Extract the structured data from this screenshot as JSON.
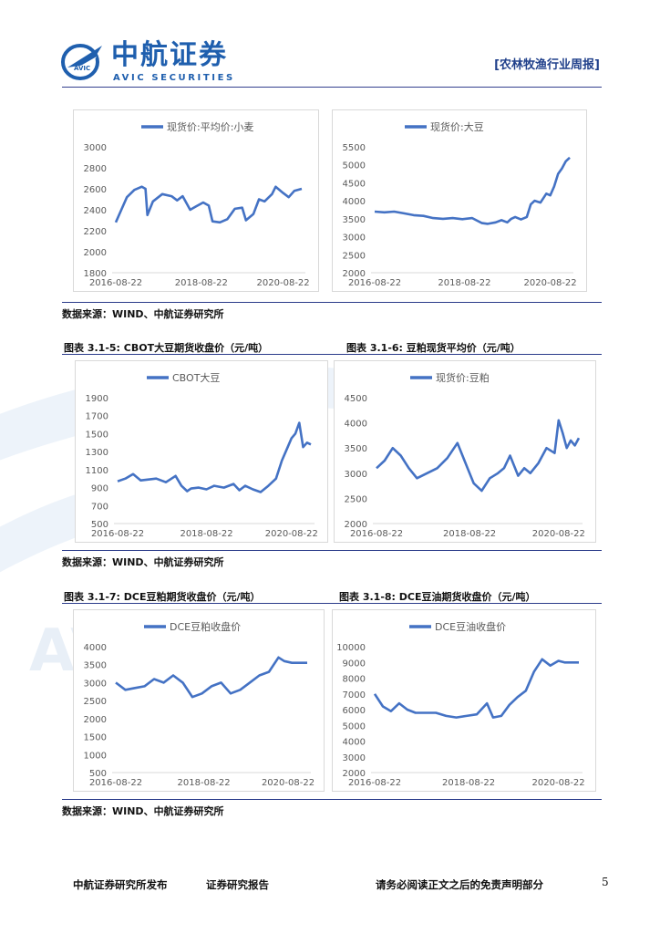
{
  "header": {
    "logo_cn": "中航证券",
    "logo_en": "AVIC SECURITIES",
    "report_tag": "[农林牧渔行业周报]"
  },
  "captions": {
    "c5": "图表 3.1-5:  CBOT大豆期货收盘价（元/吨）",
    "c6": "图表 3.1-6:  豆粕现货平均价（元/吨）",
    "c7": "图表 3.1-7:  DCE豆粕期货收盘价（元/吨）",
    "c8": "图表 3.1-8:  DCE豆油期货收盘价（元/吨）"
  },
  "sources": {
    "s1": "数据来源：WIND、中航证券研究所",
    "s2": "数据来源：WIND、中航证券研究所",
    "s3": "数据来源：WIND、中航证券研究所"
  },
  "footer": {
    "publisher": "中航证券研究所发布",
    "report_type": "证券研究报告",
    "disclaimer": "请务必阅读正文之后的免责声明部分",
    "page": "5"
  },
  "colors": {
    "line": "#4472c4",
    "brand": "#1f5fae",
    "rule": "#2a3b8a"
  },
  "chart_data": [
    {
      "type": "line",
      "legend": "现货价:平均价:小麦",
      "ylim": [
        1800,
        3000
      ],
      "yticks": [
        "3000",
        "2800",
        "2600",
        "2400",
        "2200",
        "2000",
        "1800"
      ],
      "xticks": [
        "2016-08-22",
        "2018-08-22",
        "2020-08-22"
      ],
      "x": [
        0,
        0.03,
        0.06,
        0.1,
        0.14,
        0.16,
        0.17,
        0.2,
        0.25,
        0.3,
        0.33,
        0.36,
        0.4,
        0.43,
        0.47,
        0.5,
        0.52,
        0.56,
        0.6,
        0.64,
        0.68,
        0.7,
        0.74,
        0.77,
        0.8,
        0.84,
        0.86,
        0.9,
        0.93,
        0.96,
        1
      ],
      "values": [
        2280,
        2400,
        2520,
        2590,
        2620,
        2600,
        2350,
        2480,
        2550,
        2530,
        2490,
        2530,
        2400,
        2430,
        2470,
        2440,
        2290,
        2280,
        2310,
        2410,
        2420,
        2300,
        2360,
        2500,
        2480,
        2550,
        2620,
        2560,
        2520,
        2580,
        2600
      ]
    },
    {
      "type": "line",
      "legend": "现货价:大豆",
      "ylim": [
        2000,
        5500
      ],
      "yticks": [
        "5500",
        "5000",
        "4500",
        "4000",
        "3500",
        "3000",
        "2500",
        "2000"
      ],
      "xticks": [
        "2016-08-22",
        "2018-08-22",
        "2020-08-22"
      ],
      "x": [
        0,
        0.05,
        0.1,
        0.15,
        0.2,
        0.25,
        0.3,
        0.35,
        0.4,
        0.45,
        0.5,
        0.55,
        0.58,
        0.62,
        0.65,
        0.68,
        0.7,
        0.72,
        0.75,
        0.78,
        0.8,
        0.82,
        0.85,
        0.88,
        0.9,
        0.92,
        0.94,
        0.96,
        0.98,
        1
      ],
      "values": [
        3700,
        3680,
        3700,
        3650,
        3600,
        3580,
        3520,
        3500,
        3520,
        3490,
        3520,
        3380,
        3360,
        3400,
        3460,
        3400,
        3500,
        3550,
        3480,
        3550,
        3900,
        4000,
        3950,
        4200,
        4150,
        4400,
        4750,
        4900,
        5100,
        5200
      ]
    },
    {
      "type": "line",
      "legend": "CBOT大豆",
      "ylim": [
        500,
        1900
      ],
      "yticks": [
        "1900",
        "1700",
        "1500",
        "1300",
        "1100",
        "900",
        "700",
        "500"
      ],
      "xticks": [
        "2016-08-22",
        "2018-08-22",
        "2020-08-22"
      ],
      "x": [
        0,
        0.04,
        0.08,
        0.12,
        0.16,
        0.2,
        0.25,
        0.3,
        0.33,
        0.36,
        0.38,
        0.42,
        0.46,
        0.5,
        0.55,
        0.6,
        0.63,
        0.66,
        0.7,
        0.74,
        0.78,
        0.82,
        0.85,
        0.88,
        0.9,
        0.92,
        0.94,
        0.96,
        0.98,
        1
      ],
      "values": [
        970,
        1000,
        1050,
        980,
        990,
        1000,
        960,
        1030,
        920,
        860,
        890,
        900,
        880,
        920,
        900,
        940,
        870,
        920,
        880,
        850,
        920,
        1000,
        1200,
        1350,
        1450,
        1500,
        1620,
        1350,
        1400,
        1380
      ]
    },
    {
      "type": "line",
      "legend": "现货价:豆粕",
      "ylim": [
        2000,
        4500
      ],
      "yticks": [
        "4500",
        "4000",
        "3500",
        "3000",
        "2500",
        "2000"
      ],
      "xticks": [
        "2016-08-22",
        "2018-08-22",
        "2020-08-22"
      ],
      "x": [
        0,
        0.04,
        0.08,
        0.12,
        0.16,
        0.2,
        0.25,
        0.3,
        0.35,
        0.4,
        0.45,
        0.48,
        0.52,
        0.56,
        0.6,
        0.63,
        0.66,
        0.7,
        0.73,
        0.76,
        0.8,
        0.84,
        0.88,
        0.9,
        0.92,
        0.94,
        0.96,
        0.98,
        1
      ],
      "values": [
        3100,
        3250,
        3500,
        3350,
        3100,
        2900,
        3000,
        3100,
        3300,
        3600,
        3100,
        2800,
        2650,
        2900,
        3000,
        3100,
        3350,
        2950,
        3100,
        3000,
        3200,
        3500,
        3400,
        4050,
        3800,
        3500,
        3650,
        3550,
        3700
      ]
    },
    {
      "type": "line",
      "legend": "DCE豆粕收盘价",
      "ylim": [
        500,
        4000
      ],
      "yticks": [
        "4000",
        "3500",
        "3000",
        "2500",
        "2000",
        "1500",
        "1000",
        "500"
      ],
      "xticks": [
        "2016-08-22",
        "2018-08-22",
        "2020-08-22"
      ],
      "x": [
        0,
        0.05,
        0.1,
        0.15,
        0.2,
        0.25,
        0.3,
        0.35,
        0.4,
        0.45,
        0.5,
        0.55,
        0.6,
        0.65,
        0.7,
        0.75,
        0.8,
        0.85,
        0.88,
        0.92,
        0.96,
        1
      ],
      "values": [
        3000,
        2800,
        2850,
        2900,
        3100,
        3000,
        3200,
        3000,
        2600,
        2700,
        2900,
        3000,
        2700,
        2800,
        3000,
        3200,
        3300,
        3700,
        3600,
        3550,
        3550,
        3550
      ]
    },
    {
      "type": "line",
      "legend": "DCE豆油收盘价",
      "ylim": [
        2000,
        10000
      ],
      "yticks": [
        "10000",
        "9000",
        "8000",
        "7000",
        "6000",
        "5000",
        "4000",
        "3000",
        "2000"
      ],
      "xticks": [
        "2016-08-22",
        "2018-08-22",
        "2020-08-22"
      ],
      "x": [
        0,
        0.04,
        0.08,
        0.12,
        0.16,
        0.2,
        0.25,
        0.3,
        0.35,
        0.4,
        0.45,
        0.5,
        0.55,
        0.58,
        0.62,
        0.66,
        0.7,
        0.74,
        0.78,
        0.82,
        0.86,
        0.9,
        0.93,
        0.96,
        1
      ],
      "values": [
        7000,
        6200,
        5900,
        6400,
        6000,
        5800,
        5800,
        5800,
        5600,
        5500,
        5600,
        5700,
        6400,
        5500,
        5600,
        6300,
        6800,
        7200,
        8400,
        9200,
        8800,
        9100,
        9000,
        9000,
        9000
      ]
    }
  ]
}
